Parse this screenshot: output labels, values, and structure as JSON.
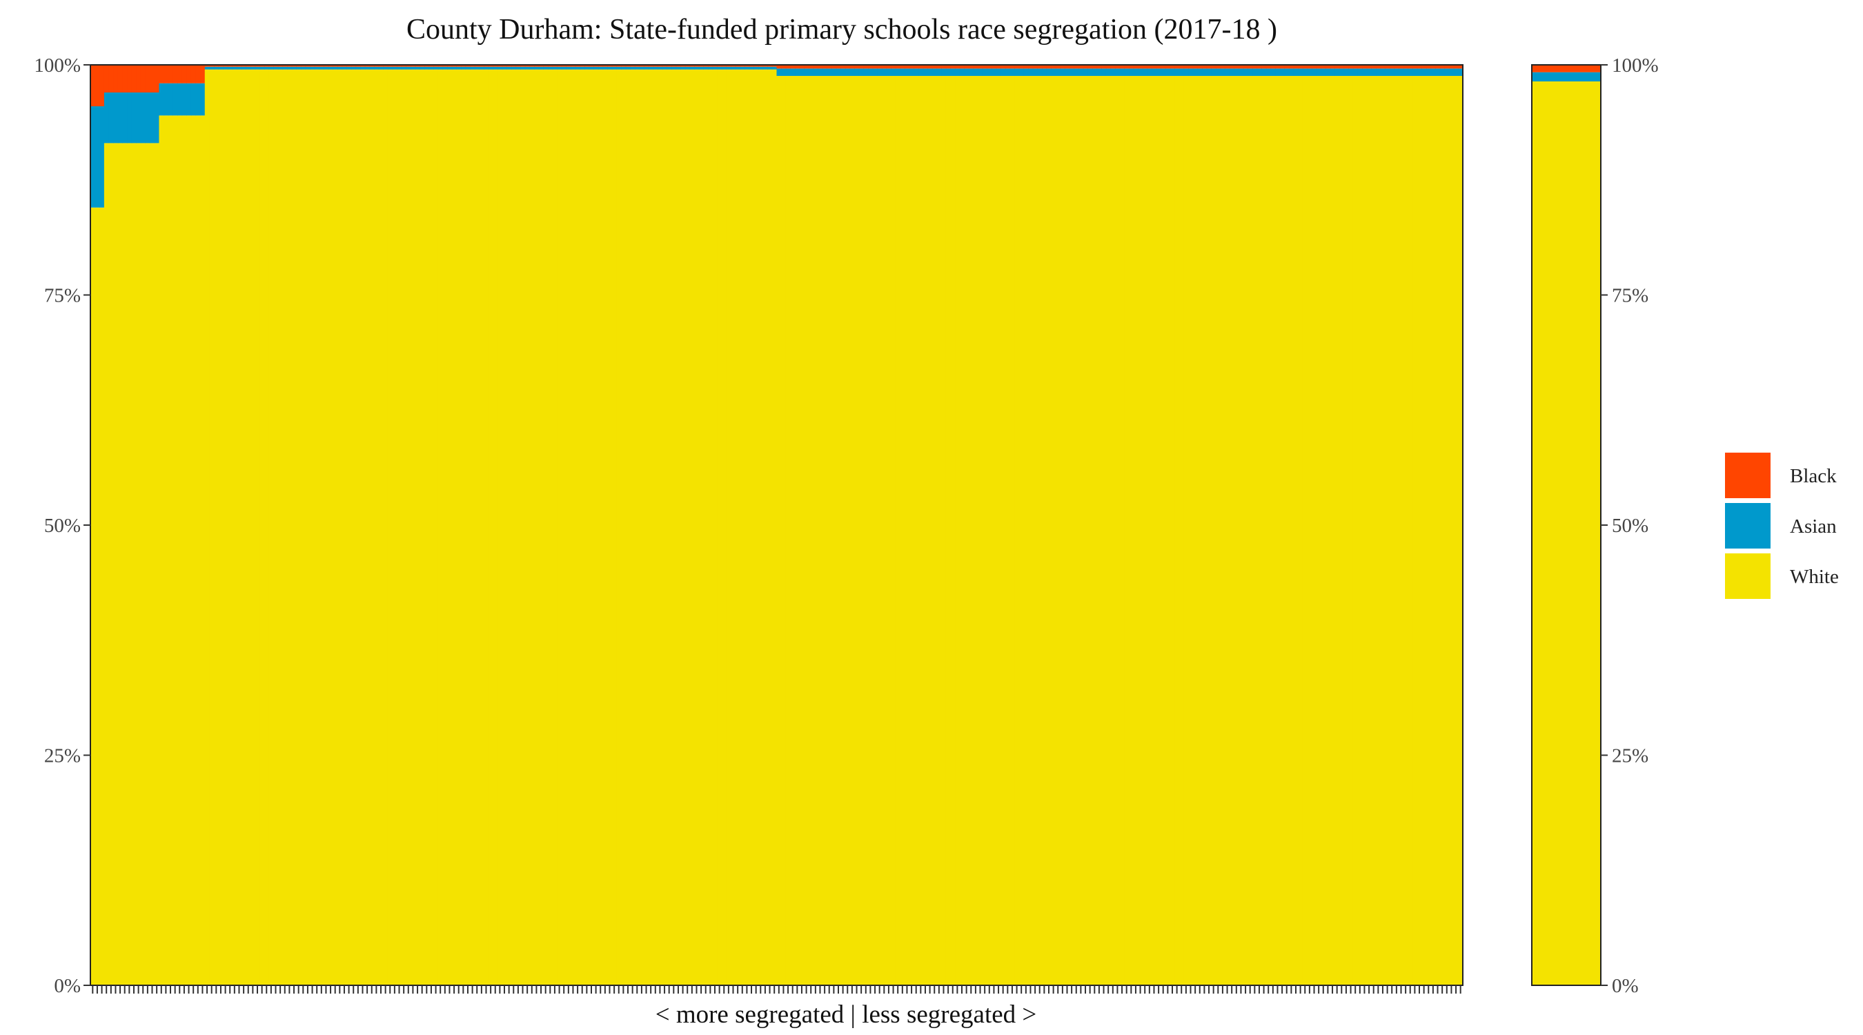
{
  "chart_data": {
    "type": "bar",
    "stacked": true,
    "title": "County Durham: State-funded primary schools race segregation (2017-18 )",
    "xlabel": "< more segregated | less segregated >",
    "ylabel": "",
    "ylim": [
      0,
      100
    ],
    "y_ticks": [
      "0%",
      "25%",
      "50%",
      "75%",
      "100%"
    ],
    "y_tick_values": [
      0,
      25,
      50,
      75,
      100
    ],
    "school_count": 300,
    "legend": {
      "placement": "right",
      "entries": [
        {
          "name": "Black",
          "color": "#FF4500"
        },
        {
          "name": "Asian",
          "color": "#0099CC"
        },
        {
          "name": "White",
          "color": "#F4E300"
        }
      ]
    },
    "series_colors": {
      "White": "#F4E300",
      "Asian": "#0099CC",
      "Black": "#FF4500"
    },
    "school_profile": {
      "percent_white": [
        {
          "from_school": 1,
          "to_school": 3,
          "value": 84.5
        },
        {
          "from_school": 4,
          "to_school": 15,
          "value": 91.5
        },
        {
          "from_school": 16,
          "to_school": 25,
          "value": 94.5
        },
        {
          "from_school": 26,
          "to_school": 150,
          "value": 99.5
        },
        {
          "from_school": 151,
          "to_school": 300,
          "value": 98.8
        }
      ],
      "percent_asian": [
        {
          "from_school": 1,
          "to_school": 3,
          "value": 11.0
        },
        {
          "from_school": 4,
          "to_school": 15,
          "value": 5.5
        },
        {
          "from_school": 16,
          "to_school": 25,
          "value": 3.5
        },
        {
          "from_school": 26,
          "to_school": 150,
          "value": 0.3
        },
        {
          "from_school": 151,
          "to_school": 300,
          "value": 0.8
        }
      ],
      "percent_black": [
        {
          "from_school": 1,
          "to_school": 3,
          "value": 4.5
        },
        {
          "from_school": 4,
          "to_school": 15,
          "value": 3.0
        },
        {
          "from_school": 16,
          "to_school": 25,
          "value": 2.0
        },
        {
          "from_school": 26,
          "to_school": 150,
          "value": 0.2
        },
        {
          "from_school": 151,
          "to_school": 300,
          "value": 0.4
        }
      ]
    },
    "overall": {
      "White": 98.2,
      "Asian": 1.0,
      "Black": 0.8
    }
  }
}
